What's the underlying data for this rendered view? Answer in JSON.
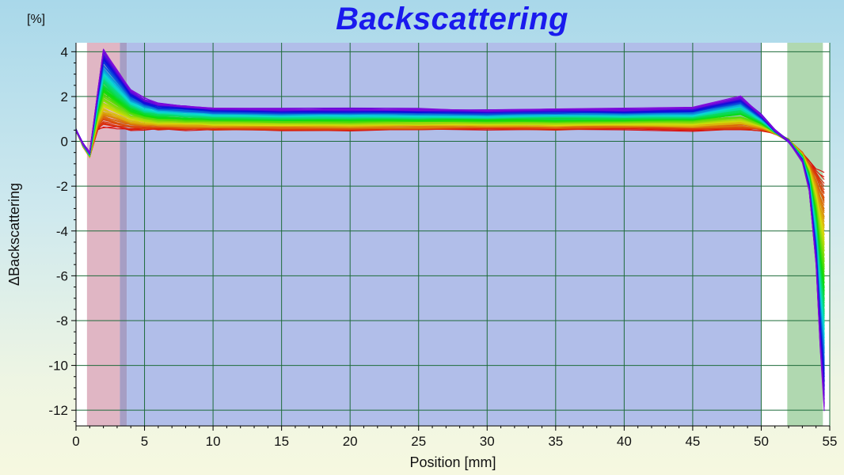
{
  "chart_data": {
    "type": "line",
    "title": "Backscattering",
    "unit_label": "[%]",
    "xlabel": "Position [mm]",
    "ylabel": "ΔBackscattering",
    "xlim": [
      0,
      55
    ],
    "ylim": [
      -12.7,
      4.4
    ],
    "x_ticks": [
      "0",
      "5",
      "10",
      "15",
      "20",
      "25",
      "30",
      "35",
      "40",
      "45",
      "50",
      "55"
    ],
    "y_ticks": [
      "4",
      "2",
      "0",
      "-2",
      "-4",
      "-6",
      "-8",
      "-10",
      "-12"
    ],
    "grid": true,
    "legend": "none",
    "zones": [
      {
        "name": "bottom-zone",
        "x": [
          0.8,
          3.2
        ],
        "color": "#e0b6c4"
      },
      {
        "name": "bottom-zone-edge",
        "x": [
          3.2,
          3.7
        ],
        "color": "#a69ec4"
      },
      {
        "name": "middle-zone",
        "x": [
          3.7,
          50.0
        ],
        "color": "#b1bee9"
      },
      {
        "name": "top-zone",
        "x": [
          51.9,
          54.5
        ],
        "color": "#b0d8b0"
      }
    ],
    "series_count": 120,
    "series_color_scale": "red (first scan) to violet (last scan)",
    "series_envelope": {
      "x": [
        0.0,
        0.5,
        1.0,
        1.6,
        2.0,
        3.0,
        4.0,
        5.0,
        6.0,
        8.0,
        10.0,
        15.0,
        20.0,
        25.0,
        30.0,
        35.0,
        40.0,
        45.0,
        48.5,
        50.0,
        51.0,
        52.0,
        53.0,
        53.5,
        54.0,
        54.3,
        54.6
      ],
      "first": [
        0.5,
        -0.2,
        -0.7,
        0.5,
        0.6,
        0.55,
        0.5,
        0.5,
        0.5,
        0.5,
        0.5,
        0.5,
        0.5,
        0.5,
        0.55,
        0.5,
        0.55,
        0.5,
        0.5,
        0.5,
        0.35,
        0.05,
        -0.5,
        -0.9,
        -1.2,
        -1.3,
        -1.4
      ],
      "last": [
        0.5,
        -0.1,
        -0.5,
        2.3,
        4.1,
        3.2,
        2.3,
        1.9,
        1.7,
        1.6,
        1.5,
        1.45,
        1.45,
        1.45,
        1.4,
        1.45,
        1.45,
        1.5,
        2.0,
        1.2,
        0.5,
        0.0,
        -0.9,
        -2.2,
        -5.5,
        -9.2,
        -12.0
      ]
    }
  }
}
